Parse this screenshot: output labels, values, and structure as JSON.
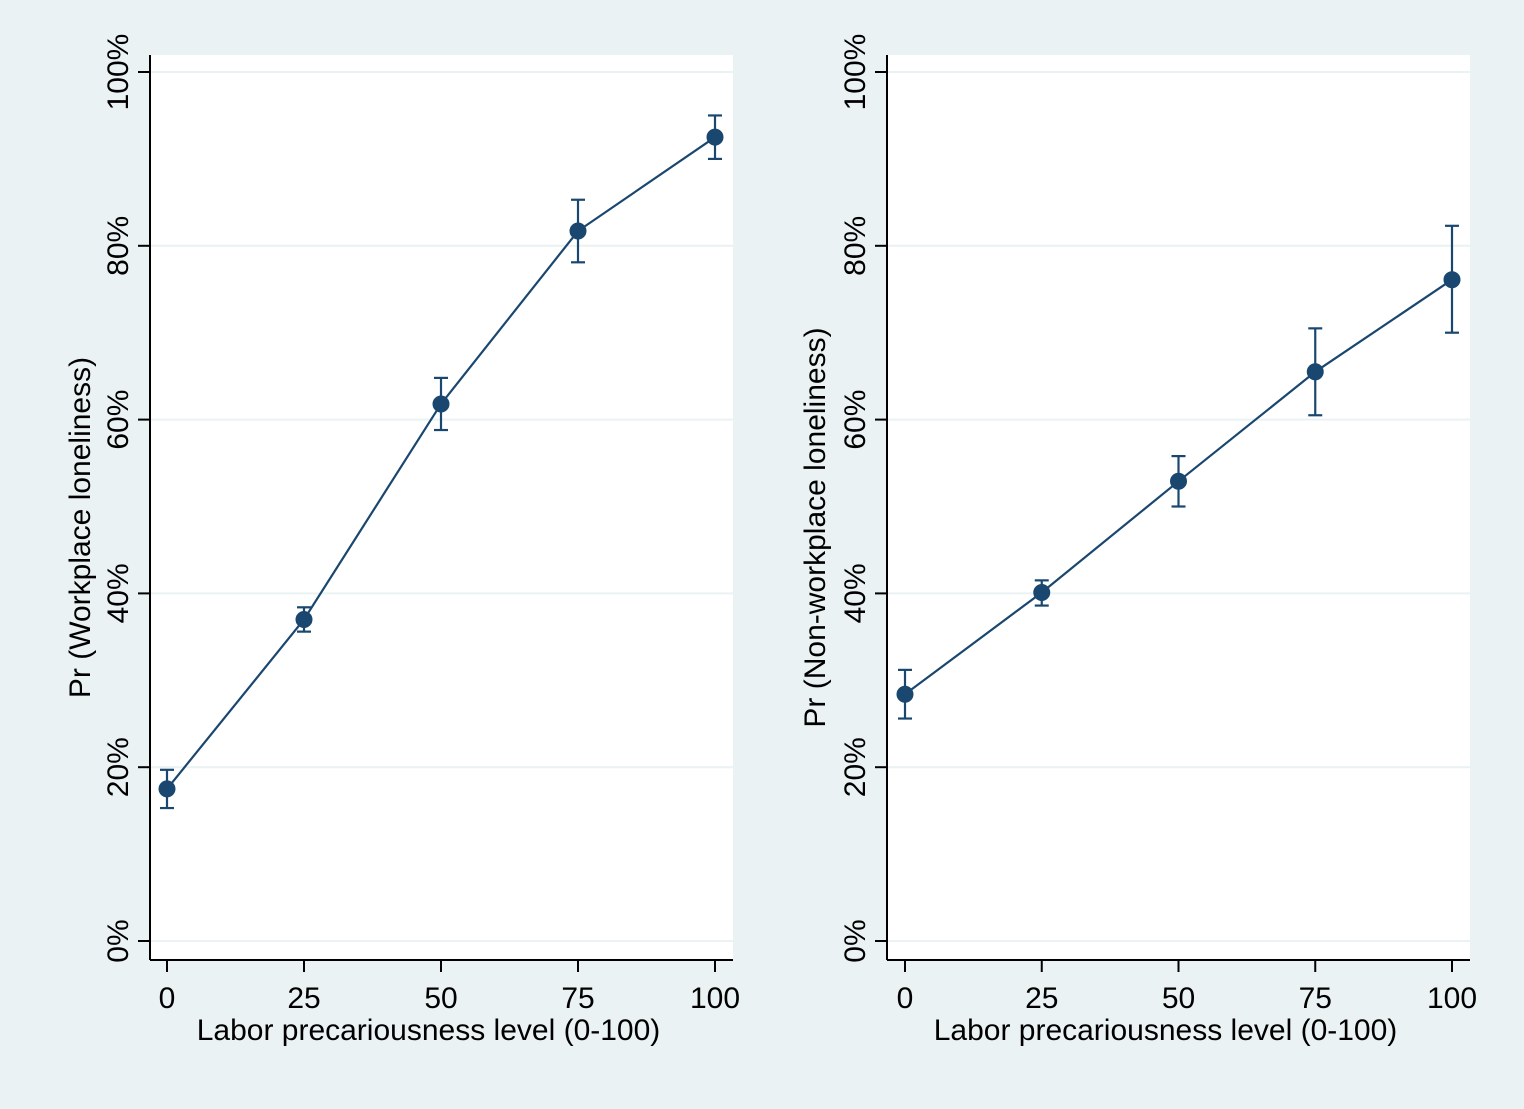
{
  "chart_data": [
    {
      "type": "line",
      "xlabel": "Labor precariousness level (0-100)",
      "ylabel": "Pr (Workplace loneliness)",
      "x": [
        0,
        25,
        50,
        75,
        100
      ],
      "xticks": [
        "0",
        "25",
        "50",
        "75",
        "100"
      ],
      "yticks": [
        "0%",
        "20%",
        "40%",
        "60%",
        "80%",
        "100%"
      ],
      "ylim": [
        0,
        100
      ],
      "xlim": [
        0,
        100
      ],
      "grid": true,
      "series": [
        {
          "values": [
            17.5,
            37,
            61.8,
            81.7,
            92.5
          ],
          "ci_low": [
            15.3,
            35.6,
            58.8,
            78.1,
            90.0
          ],
          "ci_high": [
            19.7,
            38.4,
            64.8,
            85.3,
            95.0
          ]
        }
      ]
    },
    {
      "type": "line",
      "xlabel": "Labor precariousness level (0-100)",
      "ylabel": "Pr (Non-workplace loneliness)",
      "x": [
        0,
        25,
        50,
        75,
        100
      ],
      "xticks": [
        "0",
        "25",
        "50",
        "75",
        "100"
      ],
      "yticks": [
        "0%",
        "20%",
        "40%",
        "60%",
        "80%",
        "100%"
      ],
      "ylim": [
        0,
        100
      ],
      "xlim": [
        0,
        100
      ],
      "grid": true,
      "series": [
        {
          "values": [
            28.4,
            40.1,
            52.9,
            65.5,
            76.1
          ],
          "ci_low": [
            25.6,
            38.6,
            50.0,
            60.5,
            70.0
          ],
          "ci_high": [
            31.2,
            41.5,
            55.8,
            70.5,
            82.3
          ]
        }
      ]
    }
  ],
  "colors": {
    "page_background": "#eaf2f3",
    "plot_background": "#ffffff",
    "series": "#1a476f"
  }
}
